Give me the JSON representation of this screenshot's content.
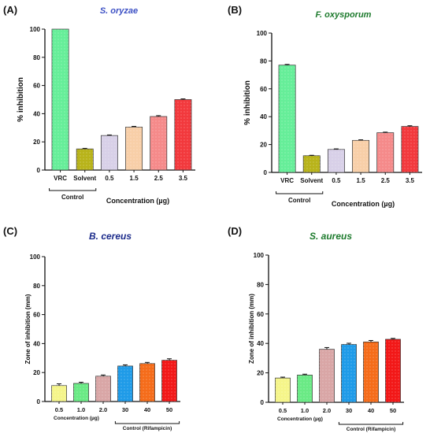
{
  "figure": {
    "panels": [
      {
        "letter": "(A)",
        "title": "S. oryzae"
      },
      {
        "letter": "(B)",
        "title": "F. oxysporum"
      },
      {
        "letter": "(C)",
        "title": "B. cereus"
      },
      {
        "letter": "(D)",
        "title": "S. aureus"
      }
    ]
  },
  "chart_data": [
    {
      "type": "bar",
      "title": "S. oryzae",
      "ylabel": "% inhibition",
      "xlabel": "Concentration (µg)",
      "categories": [
        "VRC",
        "Solvent",
        "0.5",
        "1.5",
        "2.5",
        "3.5"
      ],
      "values": [
        100,
        15,
        24.5,
        30.5,
        38,
        50
      ],
      "errors": [
        0,
        0.4,
        0.4,
        0.5,
        0.6,
        0.5
      ],
      "yticks": [
        0,
        20,
        40,
        60,
        80,
        100
      ],
      "ylim": [
        0,
        100
      ],
      "group_label": "Control",
      "group_span": [
        0,
        1
      ],
      "colors": [
        "#66ee99",
        "#b8b31a",
        "#d8d0e8",
        "#f8cfa8",
        "#f58a8a",
        "#f2393d"
      ],
      "title_color": "#3b4fc4",
      "grid": false
    },
    {
      "type": "bar",
      "title": "F. oxysporum",
      "ylabel": "% inhibition",
      "xlabel": "Concentration (µg)",
      "categories": [
        "VRC",
        "Solvent",
        "0.5",
        "1.5",
        "2.5",
        "3.5"
      ],
      "values": [
        77,
        12,
        16.5,
        23,
        28.5,
        33
      ],
      "errors": [
        0.5,
        0.3,
        0.4,
        0.4,
        0.4,
        0.5
      ],
      "yticks": [
        0,
        20,
        40,
        60,
        80,
        100
      ],
      "ylim": [
        0,
        100
      ],
      "group_label": "Control",
      "group_span": [
        0,
        1
      ],
      "colors": [
        "#66ee99",
        "#b8b31a",
        "#d8d0e8",
        "#f8cfa8",
        "#f58a8a",
        "#f2393d"
      ],
      "title_color": "#1c7a2c",
      "grid": false
    },
    {
      "type": "bar",
      "title": "B. cereus",
      "ylabel": "Zone of inhibition (mm)",
      "xlabel": "Concentration (µg)",
      "categories": [
        "0.5",
        "1.0",
        "2.0",
        "30",
        "40",
        "50"
      ],
      "values": [
        11,
        12.5,
        17.5,
        24.5,
        26.2,
        28.5
      ],
      "errors": [
        1.2,
        0.8,
        0.8,
        0.8,
        0.8,
        1.0
      ],
      "yticks": [
        0,
        20,
        40,
        60,
        80,
        100
      ],
      "ylim": [
        0,
        100
      ],
      "group_label": "Control (Rifampicin)",
      "group_span": [
        3,
        5
      ],
      "colors": [
        "#f5f58a",
        "#6aea85",
        "#d9a6a6",
        "#1f9be8",
        "#f56c1a",
        "#f21818"
      ],
      "title_color": "#1a2a8a",
      "grid": false
    },
    {
      "type": "bar",
      "title": "S. aureus",
      "ylabel": "Zone of inhibition (mm)",
      "xlabel": "Concentration (µg)",
      "categories": [
        "0.5",
        "1.0",
        "2.0",
        "30",
        "40",
        "50"
      ],
      "values": [
        16.5,
        18.5,
        36,
        39.3,
        41,
        42.8
      ],
      "errors": [
        0.6,
        0.6,
        1.2,
        0.8,
        1.0,
        0.6
      ],
      "yticks": [
        0,
        20,
        40,
        60,
        80,
        100
      ],
      "ylim": [
        0,
        100
      ],
      "group_label": "Control (Rifampicin)",
      "group_span": [
        3,
        5
      ],
      "colors": [
        "#f5f58a",
        "#6aea85",
        "#d9a6a6",
        "#1f9be8",
        "#f56c1a",
        "#f21818"
      ],
      "title_color": "#1c7a2c",
      "grid": false
    }
  ]
}
